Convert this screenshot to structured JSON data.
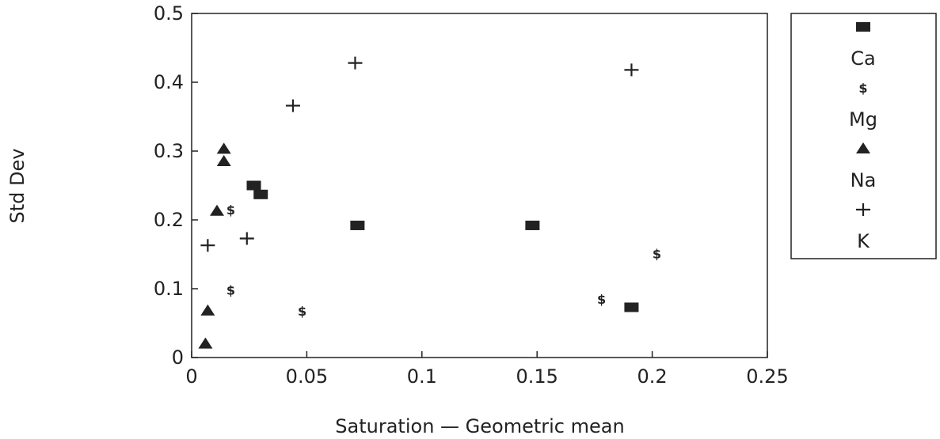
{
  "chart_data": {
    "type": "scatter",
    "xlabel": "Saturation — Geometric mean",
    "ylabel": "Std Dev",
    "xlim": [
      0,
      0.25
    ],
    "ylim": [
      0,
      0.5
    ],
    "x_ticks": [
      0,
      0.05,
      0.1,
      0.15,
      0.2,
      0.25
    ],
    "x_tick_labels": [
      "0",
      "0.05",
      "0.1",
      "0.15",
      "0.2",
      "0.25"
    ],
    "y_ticks": [
      0,
      0.1,
      0.2,
      0.3,
      0.4,
      0.5
    ],
    "y_tick_labels": [
      "0",
      "0.1",
      "0.2",
      "0.3",
      "0.4",
      "0.5"
    ],
    "grid": false,
    "legend_position": "right",
    "series": [
      {
        "name": "Ca",
        "marker": "square",
        "points": [
          [
            0.027,
            0.25
          ],
          [
            0.03,
            0.237
          ],
          [
            0.072,
            0.192
          ],
          [
            0.148,
            0.192
          ],
          [
            0.191,
            0.073
          ]
        ]
      },
      {
        "name": "Mg",
        "marker": "$",
        "points": [
          [
            0.017,
            0.215
          ],
          [
            0.017,
            0.098
          ],
          [
            0.048,
            0.068
          ],
          [
            0.178,
            0.085
          ],
          [
            0.202,
            0.151
          ]
        ]
      },
      {
        "name": "Na",
        "marker": "triangle",
        "points": [
          [
            0.014,
            0.303
          ],
          [
            0.014,
            0.285
          ],
          [
            0.011,
            0.213
          ],
          [
            0.007,
            0.068
          ],
          [
            0.006,
            0.02
          ]
        ]
      },
      {
        "name": "K",
        "marker": "plus",
        "points": [
          [
            0.071,
            0.428
          ],
          [
            0.044,
            0.366
          ],
          [
            0.024,
            0.173
          ],
          [
            0.007,
            0.163
          ],
          [
            0.191,
            0.418
          ]
        ]
      }
    ]
  }
}
